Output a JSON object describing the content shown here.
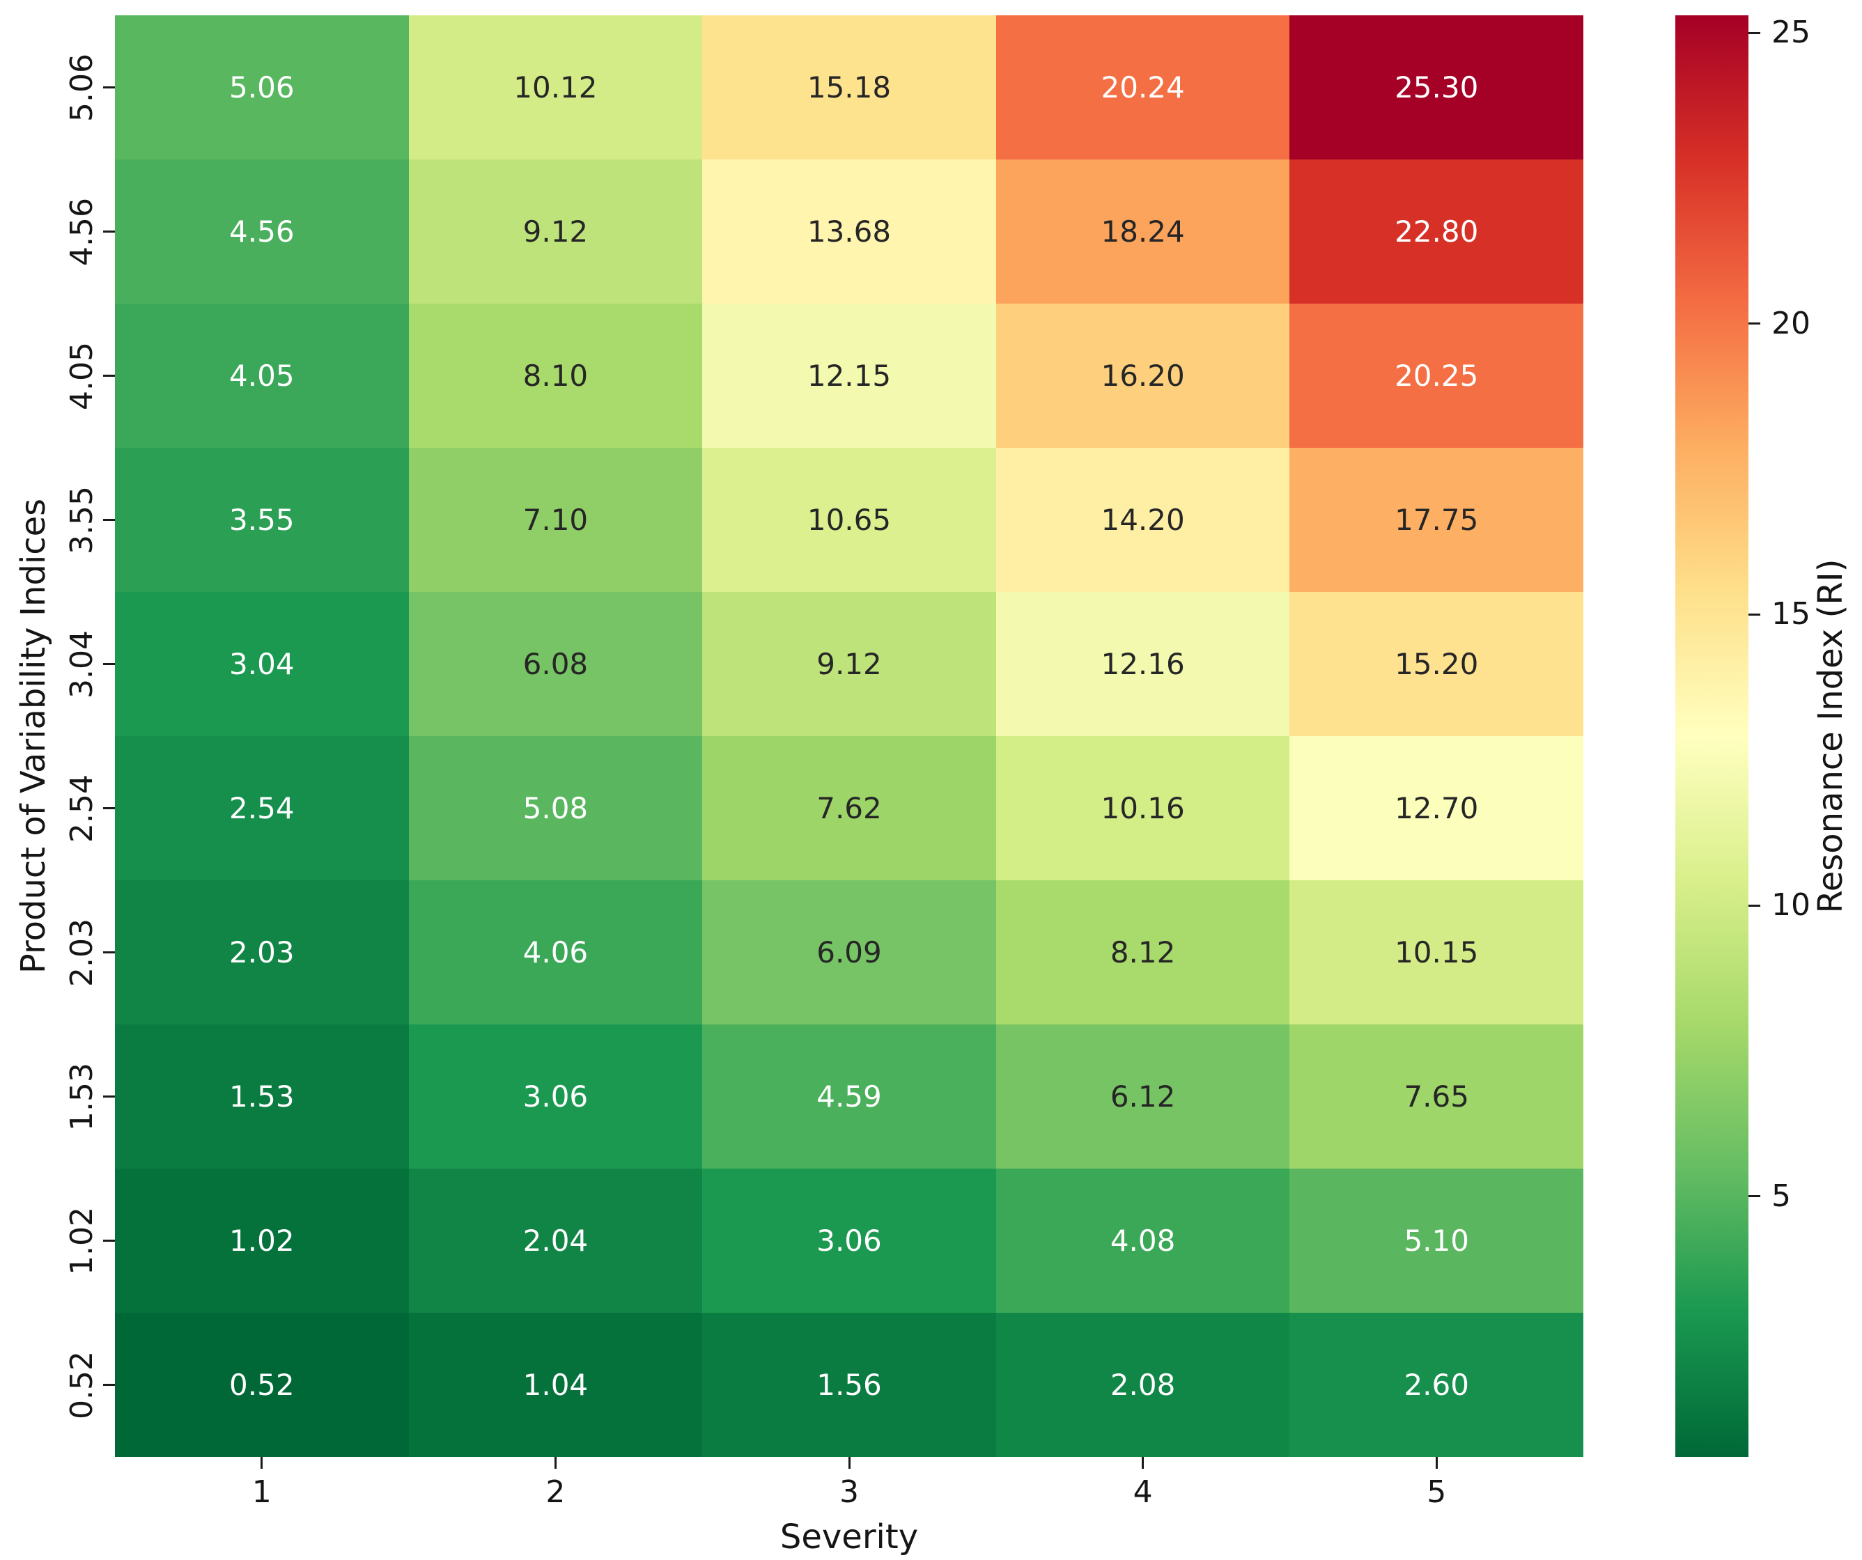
{
  "figure": {
    "background": "#ffffff"
  },
  "chart_data": {
    "type": "heatmap",
    "title": "",
    "xlabel": "Severity",
    "ylabel": "Product of Variability Indices",
    "x_categories": [
      "1",
      "2",
      "3",
      "4",
      "5"
    ],
    "y_categories": [
      "5.06",
      "4.56",
      "4.05",
      "3.55",
      "3.04",
      "2.54",
      "2.03",
      "1.53",
      "1.02",
      "0.52"
    ],
    "matrix": [
      [
        5.06,
        10.12,
        15.18,
        20.24,
        25.3
      ],
      [
        4.56,
        9.12,
        13.68,
        18.24,
        22.8
      ],
      [
        4.05,
        8.1,
        12.15,
        16.2,
        20.25
      ],
      [
        3.55,
        7.1,
        10.65,
        14.2,
        17.75
      ],
      [
        3.04,
        6.08,
        9.12,
        12.16,
        15.2
      ],
      [
        2.54,
        5.08,
        7.62,
        10.16,
        12.7
      ],
      [
        2.03,
        4.06,
        6.09,
        8.12,
        10.15
      ],
      [
        1.53,
        3.06,
        4.59,
        6.12,
        7.65
      ],
      [
        1.02,
        2.04,
        3.06,
        4.08,
        5.1
      ],
      [
        0.52,
        1.04,
        1.56,
        2.08,
        2.6
      ]
    ],
    "annotation_decimals": 2,
    "grid": false,
    "colorbar": {
      "label": "Resonance Index (RI)",
      "ticks": [
        25,
        20,
        15,
        10,
        5
      ],
      "vmin": 0.52,
      "vmax": 25.3,
      "position": "right"
    },
    "colormap": {
      "name": "RdYlGn_r",
      "anchors_high_to_low": [
        "#a50026",
        "#d73027",
        "#f46d43",
        "#fdae61",
        "#fee08b",
        "#ffffbf",
        "#d9ef8b",
        "#a6d96a",
        "#66bd63",
        "#1a9850",
        "#006837"
      ]
    },
    "annotation_text_colors": {
      "light": "#ffffff",
      "dark": "#262626"
    },
    "tick_color": "#1a1a1a"
  }
}
